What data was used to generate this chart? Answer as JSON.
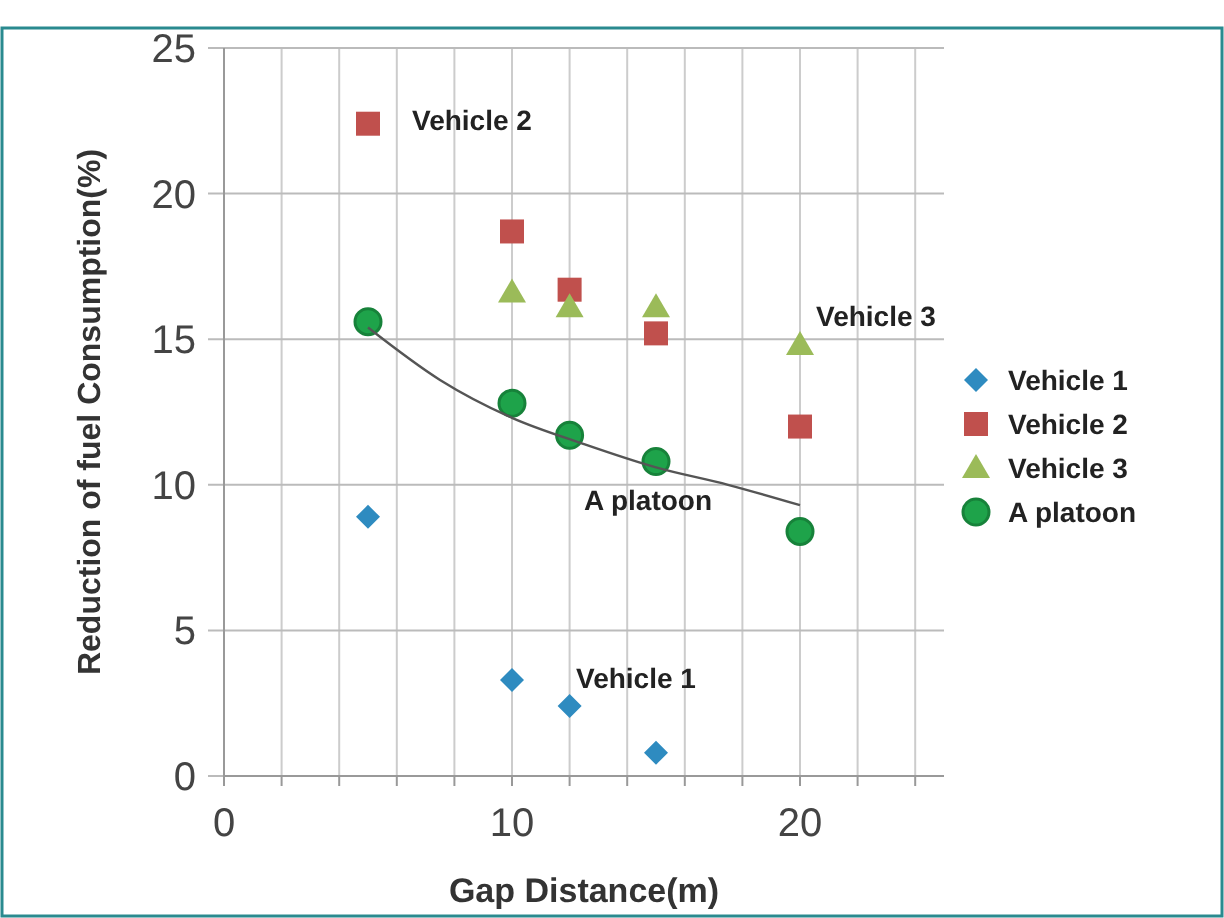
{
  "chart_data": {
    "type": "scatter",
    "xlabel": "Gap Distance(m)",
    "ylabel": "Reduction of  fuel Consumption(%)",
    "xlim": [
      0,
      25
    ],
    "ylim": [
      0,
      25
    ],
    "xticks": [
      0,
      {
        "value": 2,
        "label": null
      },
      {
        "value": 4,
        "label": null
      },
      {
        "value": 6,
        "label": null
      },
      {
        "value": 8,
        "label": null
      },
      10,
      {
        "value": 12,
        "label": null
      },
      {
        "value": 14,
        "label": null
      },
      {
        "value": 16,
        "label": null
      },
      {
        "value": 18,
        "label": null
      },
      20,
      {
        "value": 22,
        "label": null
      },
      {
        "value": 24,
        "label": null
      }
    ],
    "yticks": [
      0,
      5,
      10,
      15,
      20,
      25
    ],
    "grid": true,
    "legend": "right",
    "series": [
      {
        "name": "Vehicle 1",
        "color": "#2e8bc0",
        "marker": "diamond",
        "x": [
          5,
          10,
          12,
          15
        ],
        "values": [
          8.9,
          3.3,
          2.4,
          0.8
        ]
      },
      {
        "name": "Vehicle 2",
        "color": "#c0504d",
        "marker": "square",
        "x": [
          5,
          10,
          12,
          15,
          20
        ],
        "values": [
          22.4,
          18.7,
          16.7,
          15.2,
          12.0
        ]
      },
      {
        "name": "Vehicle 3",
        "color": "#9bbb59",
        "marker": "triangle",
        "x": [
          10,
          12,
          15,
          20
        ],
        "values": [
          16.6,
          16.1,
          16.1,
          14.8
        ]
      },
      {
        "name": "A platoon",
        "color": "#1ea34a",
        "marker": "circle",
        "x": [
          5,
          10,
          12,
          15,
          20
        ],
        "values": [
          15.6,
          12.8,
          11.7,
          10.8,
          8.4
        ]
      },
      {
        "type": "line",
        "color": "#555555",
        "marker": "none",
        "x": [
          5,
          7.5,
          10,
          12.5,
          15,
          17.5,
          20
        ],
        "values": [
          15.4,
          13.6,
          12.3,
          11.4,
          10.6,
          10.0,
          9.3
        ]
      }
    ],
    "annotations": [
      "Vehicle 2",
      "Vehicle 3",
      "A platoon",
      "Vehicle 1"
    ]
  }
}
